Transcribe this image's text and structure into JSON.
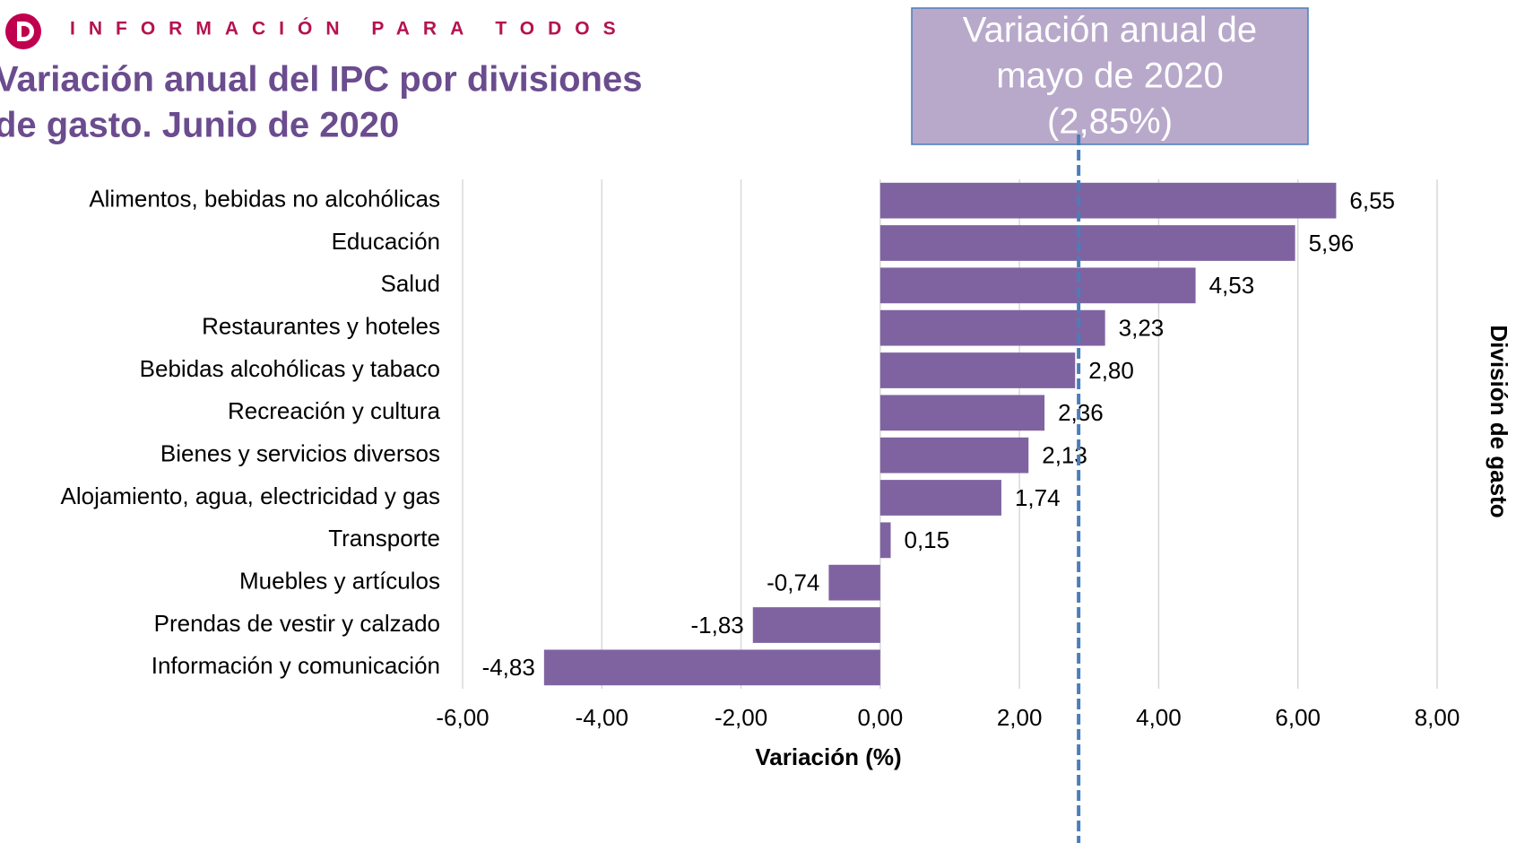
{
  "header": "INFORMACIÓN PARA TODOS",
  "chart_data": {
    "type": "hbar",
    "title": [
      "Variación anual del IPC por divisiones",
      "de gasto. Junio de 2020"
    ],
    "x_label": "Variación (%)",
    "y_label": "División de gasto",
    "categories": [
      "Alimentos, bebidas no alcohólicas",
      "Educación",
      "Salud",
      "Restaurantes y hoteles",
      "Bebidas alcohólicas y tabaco",
      "Recreación y cultura",
      "Bienes y servicios diversos",
      "Alojamiento, agua, electricidad y gas",
      "Transporte",
      "Muebles y artículos",
      "Prendas de vestir y calzado",
      "Información y comunicación"
    ],
    "values": [
      6.55,
      5.96,
      4.53,
      3.23,
      2.8,
      2.36,
      2.13,
      1.74,
      0.15,
      -0.74,
      -1.83,
      -4.83
    ],
    "value_labels": [
      "6,55",
      "5,96",
      "4,53",
      "3,23",
      "2,80",
      "2,36",
      "2,13",
      "1,74",
      "0,15",
      "-0,74",
      "-1,83",
      "-4,83"
    ],
    "color": "#7f63a1",
    "xlim": [
      -6,
      8
    ],
    "xticks": [
      {
        "value": -6,
        "label": "-6,00"
      },
      {
        "value": -4,
        "label": "-4,00"
      },
      {
        "value": -2,
        "label": "-2,00"
      },
      {
        "value": 0,
        "label": "0,00"
      },
      {
        "value": 2,
        "label": "2,00"
      },
      {
        "value": 4,
        "label": "4,00"
      },
      {
        "value": 6,
        "label": "6,00"
      },
      {
        "value": 8,
        "label": "8,00"
      }
    ],
    "grid": true,
    "reference_line": {
      "value": 2.85,
      "color": "#4a7ebb",
      "annotation": [
        "Variación anual de",
        "mayo de 2020",
        "(2,85%)"
      ]
    }
  }
}
